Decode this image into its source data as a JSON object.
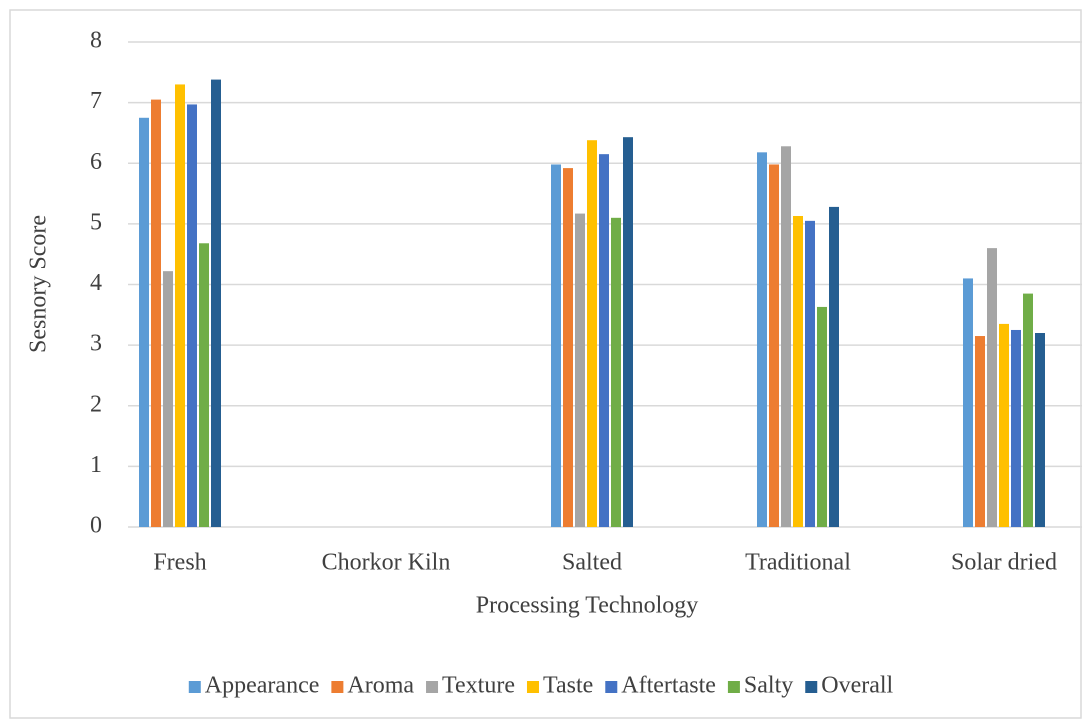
{
  "chart_data": {
    "type": "bar",
    "categories": [
      "Fresh",
      "Chorkor Kiln",
      "Salted",
      "Traditional",
      "Solar dried"
    ],
    "series": [
      {
        "name": "Appearance",
        "color": "#5b9bd5",
        "values": [
          6.75,
          null,
          5.98,
          6.18,
          4.1
        ]
      },
      {
        "name": "Aroma",
        "color": "#ed7d31",
        "values": [
          7.05,
          null,
          5.92,
          5.98,
          3.15
        ]
      },
      {
        "name": "Texture",
        "color": "#a5a5a5",
        "values": [
          4.22,
          null,
          5.17,
          6.28,
          4.6
        ]
      },
      {
        "name": "Taste",
        "color": "#ffc000",
        "values": [
          7.3,
          null,
          6.38,
          5.13,
          3.35
        ]
      },
      {
        "name": "Aftertaste",
        "color": "#4472c4",
        "values": [
          6.97,
          null,
          6.15,
          5.05,
          3.25
        ]
      },
      {
        "name": "Salty",
        "color": "#70ad47",
        "values": [
          4.68,
          null,
          5.1,
          3.63,
          3.85
        ]
      },
      {
        "name": "Overall",
        "color": "#255e91",
        "values": [
          7.38,
          null,
          6.43,
          5.28,
          3.2
        ]
      }
    ],
    "xlabel": "Processing Technology",
    "ylabel": "Sesnory Score",
    "ylim": [
      0,
      8
    ],
    "yticks": [
      0,
      1,
      2,
      3,
      4,
      5,
      6,
      7,
      8
    ],
    "grid": true,
    "legend": "bottom"
  }
}
